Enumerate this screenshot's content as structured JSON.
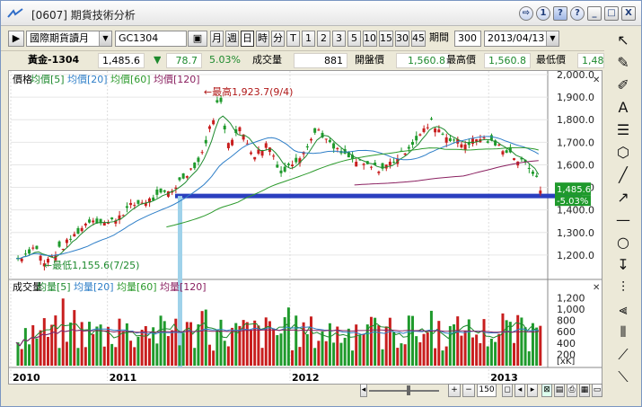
{
  "window": {
    "title": "[0607] 期貨技術分析",
    "title_buttons": [
      "⇨",
      "1",
      "?",
      "?",
      "_",
      "□",
      "X"
    ]
  },
  "toolbar": {
    "market": "國際期貨讀月",
    "symbol": "GC1304",
    "periods": [
      "月",
      "週",
      "日",
      "時",
      "分",
      "T",
      "1",
      "2",
      "3",
      "5",
      "10",
      "15",
      "30",
      "45"
    ],
    "active_period": "日",
    "period_count_label": "期間",
    "period_count": "300",
    "date": "2013/04/13"
  },
  "quote": {
    "name": "黃金-1304",
    "last": "1,485.6",
    "change_arrow": "▼",
    "change": "78.7",
    "change_pct": "5.03%",
    "volume_label": "成交量",
    "volume": "881",
    "open_label": "開盤價",
    "open": "1,560.8",
    "high_label": "最高價",
    "high": "1,560.8",
    "low_label": "最低價",
    "low": "1,48"
  },
  "colors": {
    "up": "#c81e1e",
    "down": "#1f9a2c",
    "ma5": "#1e8a2e",
    "ma20": "#2f7fc8",
    "ma60": "#2c9a2c",
    "ma120": "#8a2060",
    "support": "#2b3fbf",
    "marker": "#9fd2ea"
  },
  "chart_data": {
    "type": "candlestick",
    "price_panel": {
      "legend": [
        {
          "label": "價格",
          "color": "#000000"
        },
        {
          "label": "均價[5]",
          "color": "#1e8a2e"
        },
        {
          "label": "均價[20]",
          "color": "#2f7fc8"
        },
        {
          "label": "均價[60]",
          "color": "#2c9a2c"
        },
        {
          "label": "均價[120]",
          "color": "#8a2060"
        }
      ],
      "ylim": [
        1100,
        2000
      ],
      "yticks": [
        "2,000.0",
        "1,900.0",
        "1,800.0",
        "1,700.0",
        "1,600.0",
        "1,500.0",
        "1,400.0",
        "1,300.0",
        "1,200.0"
      ],
      "ytick_values": [
        2000,
        1900,
        1800,
        1700,
        1600,
        1500,
        1400,
        1300,
        1200
      ],
      "annotations": {
        "high": "最高1,923.7(9/4)",
        "low": "最低1,155.6(7/25)",
        "last_price": "1,485.6",
        "last_pct": "-5.03%"
      },
      "high_value": 1923.7,
      "low_value": 1155.6,
      "support_level": 1462,
      "last_value": 1485.6,
      "anchors": [
        [
          0,
          1185
        ],
        [
          20,
          1240
        ],
        [
          28,
          1160
        ],
        [
          50,
          1240
        ],
        [
          80,
          1360
        ],
        [
          100,
          1340
        ],
        [
          125,
          1420
        ],
        [
          150,
          1450
        ],
        [
          170,
          1490
        ],
        [
          185,
          1560
        ],
        [
          200,
          1620
        ],
        [
          215,
          1810
        ],
        [
          222,
          1910
        ],
        [
          230,
          1700
        ],
        [
          245,
          1760
        ],
        [
          260,
          1640
        ],
        [
          275,
          1700
        ],
        [
          290,
          1560
        ],
        [
          310,
          1640
        ],
        [
          330,
          1760
        ],
        [
          345,
          1680
        ],
        [
          360,
          1640
        ],
        [
          380,
          1600
        ],
        [
          400,
          1580
        ],
        [
          420,
          1640
        ],
        [
          440,
          1720
        ],
        [
          455,
          1790
        ],
        [
          470,
          1730
        ],
        [
          490,
          1690
        ],
        [
          510,
          1720
        ],
        [
          525,
          1690
        ],
        [
          540,
          1660
        ],
        [
          550,
          1620
        ],
        [
          560,
          1600
        ],
        [
          568,
          1565
        ],
        [
          575,
          1485.6
        ]
      ]
    },
    "volume_panel": {
      "legend": [
        {
          "label": "成交量",
          "color": "#000000"
        },
        {
          "label": "均量[5]",
          "color": "#1e8a2e"
        },
        {
          "label": "均量[20]",
          "color": "#2f7fc8"
        },
        {
          "label": "均量[60]",
          "color": "#2c9a2c"
        },
        {
          "label": "均量[120]",
          "color": "#8a2060"
        }
      ],
      "ylim": [
        0,
        1300
      ],
      "yticks": [
        "1,200",
        "1,000",
        "800",
        "600",
        "400",
        "200"
      ],
      "ytick_values": [
        1200,
        1000,
        800,
        600,
        400,
        200
      ],
      "unit": "[xK]"
    },
    "x_labels": [
      {
        "label": "2010",
        "pos": 0.0
      },
      {
        "label": "2011",
        "pos": 0.18
      },
      {
        "label": "2012",
        "pos": 0.52
      },
      {
        "label": "2013",
        "pos": 0.89
      }
    ],
    "bar_count": 140
  },
  "side_tools": [
    "cursor-icon",
    "eraser-icon",
    "all-eraser-icon",
    "text-icon",
    "lines-icon",
    "paint-icon",
    "line-icon",
    "arrow-icon",
    "dash-icon",
    "circle-icon",
    "pin-icon",
    "bars-icon",
    "candles-icon",
    "bars2-icon",
    "fan-icon",
    "fan2-icon"
  ],
  "bottom": {
    "zoom": "150"
  }
}
